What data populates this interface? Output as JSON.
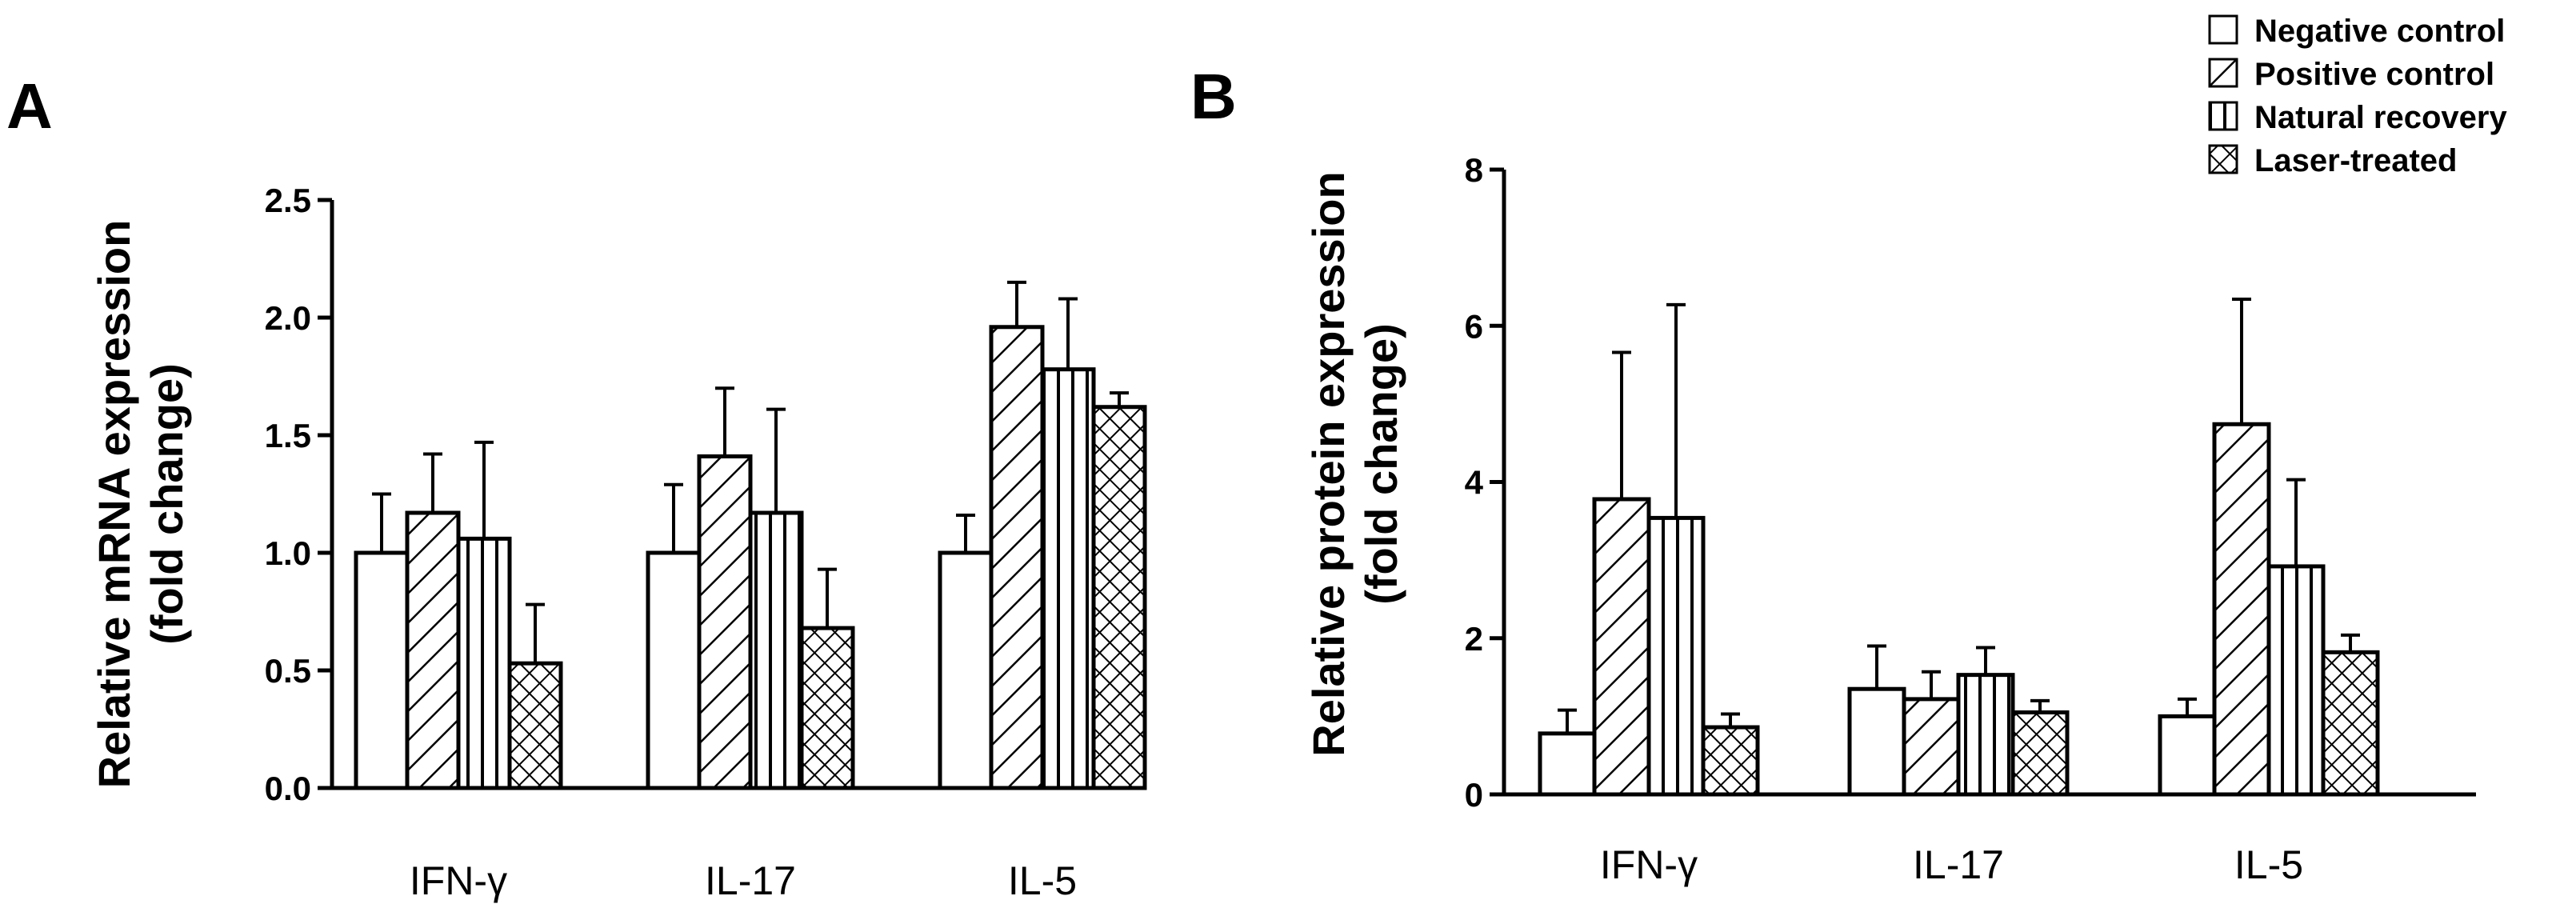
{
  "legend": [
    {
      "label": "Negative control",
      "pattern": "none"
    },
    {
      "label": "Positive control",
      "pattern": "diagonal"
    },
    {
      "label": "Natural recovery",
      "pattern": "vertical"
    },
    {
      "label": "Laser-treated",
      "pattern": "crosshatch"
    }
  ],
  "chart_data": [
    {
      "panel": "A",
      "type": "bar",
      "categories": [
        "IFN-γ",
        "IL-17",
        "IL-5"
      ],
      "ylabel_line1": "Relative mRNA expression",
      "ylabel_line2": "(fold change)",
      "ylim": [
        0,
        2.5
      ],
      "yticks": [
        "0.0",
        "0.5",
        "1.0",
        "1.5",
        "2.0",
        "2.5"
      ],
      "ytick_values": [
        0,
        0.5,
        1.0,
        1.5,
        2.0,
        2.5
      ],
      "series": [
        {
          "name": "Negative control",
          "values": [
            1.0,
            1.0,
            1.0
          ],
          "errors": [
            0.25,
            0.29,
            0.16
          ]
        },
        {
          "name": "Positive control",
          "values": [
            1.17,
            1.41,
            1.96
          ],
          "errors": [
            0.25,
            0.29,
            0.19
          ]
        },
        {
          "name": "Natural recovery",
          "values": [
            1.06,
            1.17,
            1.78
          ],
          "errors": [
            0.41,
            0.44,
            0.3
          ]
        },
        {
          "name": "Laser-treated",
          "values": [
            0.53,
            0.68,
            1.62
          ],
          "errors": [
            0.25,
            0.25,
            0.06
          ]
        }
      ]
    },
    {
      "panel": "B",
      "type": "bar",
      "categories": [
        "IFN-γ",
        "IL-17",
        "IL-5"
      ],
      "ylabel_line1": "Relative protein expression",
      "ylabel_line2": "(fold change)",
      "ylim": [
        0,
        8
      ],
      "yticks": [
        "0",
        "2",
        "4",
        "6",
        "8"
      ],
      "ytick_values": [
        0,
        2,
        4,
        6,
        8
      ],
      "series": [
        {
          "name": "Negative control",
          "values": [
            0.78,
            1.35,
            1.0
          ],
          "errors": [
            0.3,
            0.55,
            0.22
          ]
        },
        {
          "name": "Positive control",
          "values": [
            3.78,
            1.22,
            4.74
          ],
          "errors": [
            1.88,
            0.35,
            1.6
          ]
        },
        {
          "name": "Natural recovery",
          "values": [
            3.54,
            1.53,
            2.92
          ],
          "errors": [
            2.73,
            0.35,
            1.11
          ]
        },
        {
          "name": "Laser-treated",
          "values": [
            0.86,
            1.05,
            1.82
          ],
          "errors": [
            0.17,
            0.15,
            0.22
          ]
        }
      ]
    }
  ]
}
